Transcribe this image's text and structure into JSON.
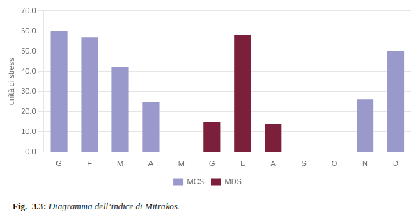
{
  "chart_data": {
    "type": "bar",
    "categories": [
      "G",
      "F",
      "M",
      "A",
      "M",
      "G",
      "L",
      "A",
      "S",
      "O",
      "N",
      "D"
    ],
    "series": [
      {
        "name": "MCS",
        "color": "#9999CC",
        "values": [
          60,
          57,
          42,
          25,
          0,
          0,
          0,
          0,
          0,
          0,
          26,
          50
        ]
      },
      {
        "name": "MDS",
        "color": "#7B1F3A",
        "values": [
          0,
          0,
          0,
          0,
          0,
          15,
          58,
          14,
          0,
          0,
          0,
          0
        ]
      }
    ],
    "ylabel": "unità di stress",
    "ylim": [
      0,
      70
    ],
    "yticks": [
      {
        "value": 0,
        "label": "0.0"
      },
      {
        "value": 10,
        "label": "10.0"
      },
      {
        "value": 20,
        "label": "20.0"
      },
      {
        "value": 30,
        "label": "30.0"
      },
      {
        "value": 40,
        "label": "40.0"
      },
      {
        "value": 50,
        "label": "50.0"
      },
      {
        "value": 60,
        "label": "60.0"
      },
      {
        "value": 70,
        "label": "70.0"
      }
    ],
    "grid": true,
    "legend": "bottom",
    "annotations": [
      "Fig.  3.3:",
      " Diagramma dell’indice di Mitrakos."
    ]
  }
}
